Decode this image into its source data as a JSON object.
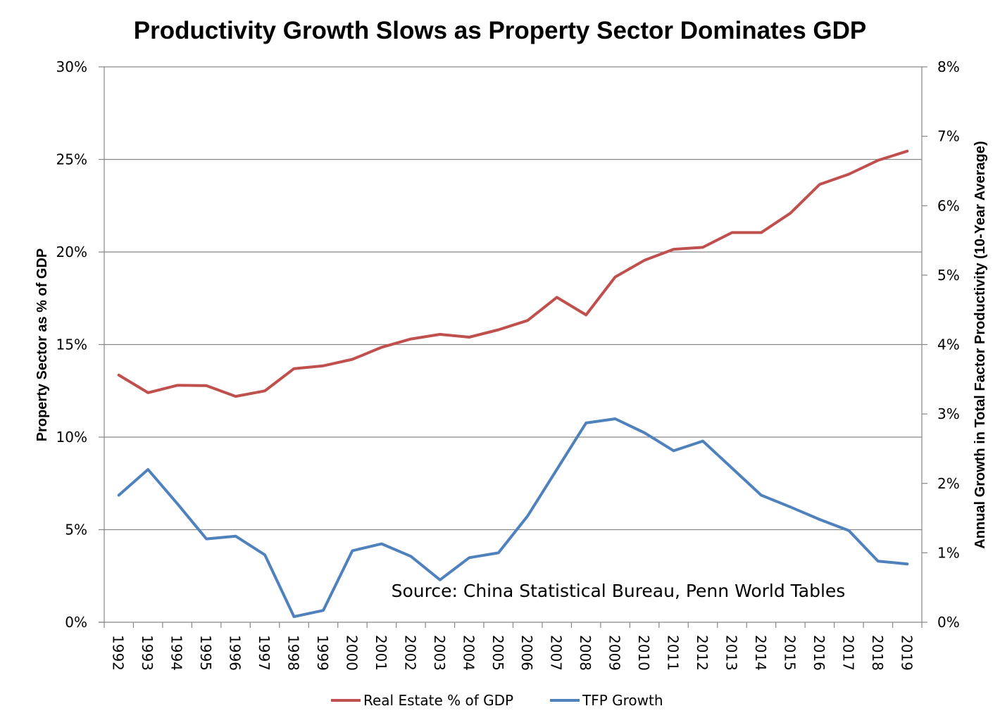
{
  "chart_data": {
    "type": "line",
    "title": "Productivity Growth Slows as Property Sector Dominates GDP",
    "xlabel": "",
    "ylabel": "Property Sector as % of GDP",
    "y2label": "Annual Growth in Total Factor Productivity (10-Year Average)",
    "categories": [
      "1992",
      "1993",
      "1994",
      "1995",
      "1996",
      "1997",
      "1998",
      "1999",
      "2000",
      "2001",
      "2002",
      "2003",
      "2004",
      "2005",
      "2006",
      "2007",
      "2008",
      "2009",
      "2010",
      "2011",
      "2012",
      "2013",
      "2014",
      "2015",
      "2016",
      "2017",
      "2018",
      "2019"
    ],
    "ylim": [
      0,
      30
    ],
    "y2lim": [
      0,
      8
    ],
    "yticks": [
      0,
      5,
      10,
      15,
      20,
      25,
      30
    ],
    "yticklabels": [
      "0%",
      "5%",
      "10%",
      "15%",
      "20%",
      "25%",
      "30%"
    ],
    "y2ticks": [
      0,
      1,
      2,
      3,
      4,
      5,
      6,
      7,
      8
    ],
    "y2ticklabels": [
      "0%",
      "1%",
      "2%",
      "3%",
      "4%",
      "5%",
      "6%",
      "7%",
      "8%"
    ],
    "grid": true,
    "legend_position": "bottom",
    "annotation": "Source: China Statistical Bureau, Penn World Tables",
    "series": [
      {
        "name": "Real Estate % of GDP",
        "axis": "left",
        "color": "#C0504D",
        "values": [
          13.35,
          12.4,
          12.8,
          12.78,
          12.2,
          12.5,
          13.7,
          13.85,
          14.2,
          14.85,
          15.3,
          15.55,
          15.4,
          15.8,
          16.3,
          17.55,
          16.6,
          18.65,
          19.55,
          20.15,
          20.25,
          21.05,
          21.05,
          22.1,
          23.65,
          24.2,
          24.95,
          25.45
        ]
      },
      {
        "name": "TFP Growth",
        "axis": "right",
        "color": "#4F81BD",
        "values": [
          1.83,
          2.2,
          1.71,
          1.2,
          1.24,
          0.97,
          0.08,
          0.17,
          1.03,
          1.13,
          0.95,
          0.61,
          0.93,
          1.0,
          1.53,
          2.2,
          2.87,
          2.93,
          2.73,
          2.47,
          2.61,
          2.22,
          1.83,
          1.66,
          1.48,
          1.32,
          0.88,
          0.84
        ]
      }
    ]
  }
}
